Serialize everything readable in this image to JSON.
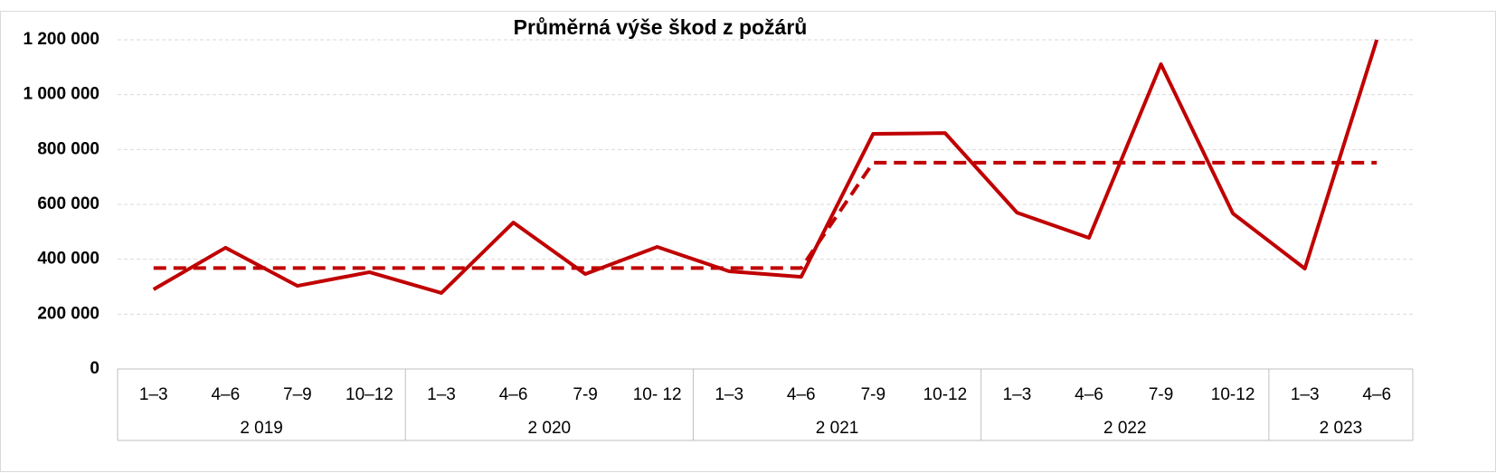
{
  "chart_data": {
    "type": "line",
    "title": "Průměrná výše škod z požárů",
    "categories": [
      "1–3",
      "4–6",
      "7–9",
      "10–12",
      "1–3",
      "4–6",
      "7-9",
      "10- 12",
      "1–3",
      "4–6",
      "7-9",
      "10-12",
      "1–3",
      "4–6",
      "7-9",
      "10-12",
      "1–3",
      "4–6"
    ],
    "groups": [
      {
        "name": "2 019",
        "size": 4
      },
      {
        "name": "2 020",
        "size": 4
      },
      {
        "name": "2 021",
        "size": 4
      },
      {
        "name": "2 022",
        "size": 4
      },
      {
        "name": "2 023",
        "size": 2
      }
    ],
    "series": [
      {
        "color": "#c00000",
        "style": "solid",
        "values": [
          290000,
          442000,
          303000,
          353000,
          277000,
          534000,
          346000,
          445000,
          356000,
          336000,
          857000,
          860000,
          570000,
          478000,
          1111000,
          567000,
          366000,
          1200000
        ]
      },
      {
        "color": "#c00000",
        "style": "dashed",
        "values": [
          368000,
          368000,
          368000,
          368000,
          368000,
          368000,
          368000,
          368000,
          368000,
          368000,
          752000,
          752000,
          752000,
          752000,
          752000,
          752000,
          752000,
          752000
        ]
      }
    ],
    "ylim": [
      0,
      1200000
    ],
    "yticks": [
      0,
      {
        "value": 200000,
        "label": "200 000"
      },
      {
        "value": 400000,
        "label": "400 000"
      },
      {
        "value": 600000,
        "label": "600 000"
      },
      {
        "value": 800000,
        "label": "800 000"
      },
      {
        "value": 1000000,
        "label": "1 000 000"
      },
      {
        "value": 1200000,
        "label": "1 200 000"
      }
    ],
    "grid": true
  }
}
